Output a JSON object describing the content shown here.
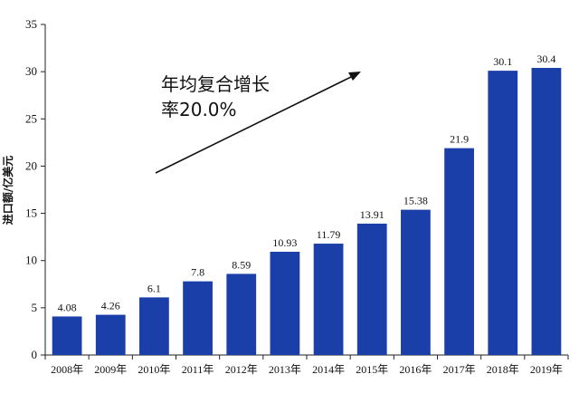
{
  "chart_data": {
    "type": "bar",
    "categories": [
      "2008年",
      "2009年",
      "2010年",
      "2011年",
      "2012年",
      "2013年",
      "2014年",
      "2015年",
      "2016年",
      "2017年",
      "2018年",
      "2019年"
    ],
    "values": [
      4.08,
      4.26,
      6.1,
      7.8,
      8.59,
      10.93,
      11.79,
      13.91,
      15.38,
      21.9,
      30.1,
      30.4
    ],
    "data_labels": [
      "4.08",
      "4.26",
      "6.1",
      "7.8",
      "8.59",
      "10.93",
      "11.79",
      "13.91",
      "15.38",
      "21.9",
      "30.1",
      "30.4"
    ],
    "title": "",
    "xlabel": "",
    "ylabel": "进口额/亿美元",
    "ylim": [
      0,
      35
    ],
    "yticks": [
      0,
      5,
      10,
      15,
      20,
      25,
      30,
      35
    ],
    "bar_color": "#1a3fa8",
    "grid": false,
    "annotation": {
      "line1": "年均复合增长",
      "line2": "率20.0%",
      "arrow": "trend-up"
    }
  }
}
